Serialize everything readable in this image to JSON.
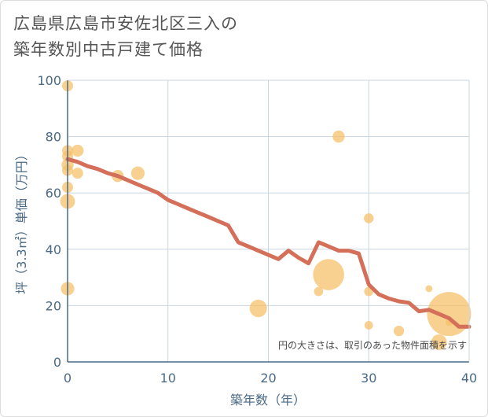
{
  "title_lines": [
    "広島県広島市安佐北区三入の",
    "築年数別中古戸建て価格"
  ],
  "chart_data": {
    "type": "scatter",
    "title": "広島県広島市安佐北区三入の築年数別中古戸建て価格",
    "xlabel": "築年数（年）",
    "ylabel": "坪（3.3㎡）単価（万円）",
    "xlim": [
      0,
      40
    ],
    "ylim": [
      0,
      100
    ],
    "xticks": [
      0,
      10,
      20,
      30,
      40
    ],
    "yticks": [
      0,
      20,
      40,
      60,
      80,
      100
    ],
    "grid": true,
    "note": "円の大きさは、取引のあった物件面積を示す",
    "colors": {
      "bubble": "#f5c06a",
      "line": "#d4705a",
      "grid": "#c9d6e2",
      "axis": "#4a6a85"
    },
    "scatter_points": [
      {
        "x": 0,
        "y": 98,
        "size": 1
      },
      {
        "x": 0,
        "y": 75,
        "size": 1
      },
      {
        "x": 0,
        "y": 73,
        "size": 1
      },
      {
        "x": 0,
        "y": 70,
        "size": 1.2
      },
      {
        "x": 0,
        "y": 68,
        "size": 1
      },
      {
        "x": 0,
        "y": 62,
        "size": 1
      },
      {
        "x": 0,
        "y": 57,
        "size": 1.8
      },
      {
        "x": 0,
        "y": 26,
        "size": 1.5
      },
      {
        "x": 1,
        "y": 75,
        "size": 1.2
      },
      {
        "x": 1,
        "y": 67,
        "size": 1
      },
      {
        "x": 5,
        "y": 66,
        "size": 1.2
      },
      {
        "x": 7,
        "y": 67,
        "size": 1.5
      },
      {
        "x": 19,
        "y": 19,
        "size": 2.5
      },
      {
        "x": 25,
        "y": 25,
        "size": 0.7
      },
      {
        "x": 26,
        "y": 31,
        "size": 8
      },
      {
        "x": 27,
        "y": 80,
        "size": 1.2
      },
      {
        "x": 30,
        "y": 51,
        "size": 0.8
      },
      {
        "x": 30,
        "y": 25,
        "size": 0.7
      },
      {
        "x": 30,
        "y": 13,
        "size": 0.6
      },
      {
        "x": 33,
        "y": 11,
        "size": 0.9
      },
      {
        "x": 36,
        "y": 26,
        "size": 0.4
      },
      {
        "x": 37,
        "y": 7,
        "size": 2
      },
      {
        "x": 38,
        "y": 17,
        "size": 16
      },
      {
        "x": 38,
        "y": 14,
        "size": 0.4
      }
    ],
    "trend_line": {
      "x": [
        0,
        1,
        2,
        3,
        4,
        5,
        6,
        7,
        8,
        9,
        10,
        11,
        12,
        13,
        14,
        15,
        16,
        17,
        18,
        19,
        20,
        21,
        22,
        23,
        24,
        25,
        26,
        27,
        28,
        29,
        30,
        31,
        32,
        33,
        34,
        35,
        36,
        37,
        38,
        39,
        40
      ],
      "y": [
        72,
        71,
        69.5,
        68.5,
        67,
        66,
        64.5,
        63,
        61.5,
        60,
        57.5,
        56,
        54.5,
        53,
        51.5,
        50,
        48.5,
        42.5,
        41,
        39.5,
        38,
        36.5,
        39.5,
        37,
        35,
        42.5,
        41,
        39.5,
        39.5,
        38.5,
        27.5,
        24,
        22.5,
        21.5,
        21,
        18,
        18.5,
        17,
        15.5,
        12.5,
        12.5
      ]
    }
  }
}
